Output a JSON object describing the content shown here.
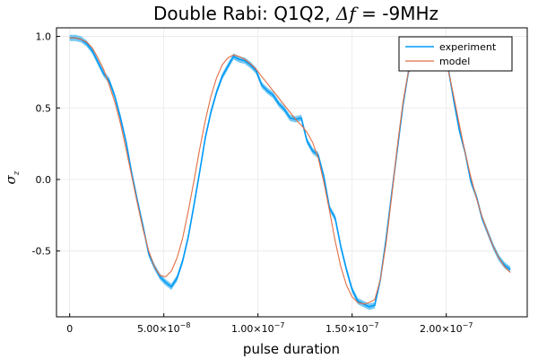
{
  "chart_data": {
    "type": "line",
    "title": "Double Rabi: Q1Q2, Δf = -9MHz",
    "title_parts": {
      "prefix": "Double Rabi: Q1Q2, ",
      "math": "Δf",
      "suffix": " = -9MHz"
    },
    "xlabel": "pulse duration",
    "ylabel": "σ",
    "ylabel_subscript": "z",
    "xlim": [
      -7e-09,
      2.43e-07
    ],
    "ylim": [
      -0.96,
      1.06
    ],
    "xticks": [
      {
        "value": 0,
        "mantissa": "0",
        "exponent": ""
      },
      {
        "value": 5e-08,
        "mantissa": "5.00×10",
        "exponent": "−8"
      },
      {
        "value": 1e-07,
        "mantissa": "1.00×10",
        "exponent": "−7"
      },
      {
        "value": 1.5e-07,
        "mantissa": "1.50×10",
        "exponent": "−7"
      },
      {
        "value": 2e-07,
        "mantissa": "2.00×10",
        "exponent": "−7"
      }
    ],
    "yticks": [
      {
        "value": 1.0,
        "label": "1.0"
      },
      {
        "value": 0.5,
        "label": "0.5"
      },
      {
        "value": 0.0,
        "label": "0.0"
      },
      {
        "value": -0.5,
        "label": "-0.5"
      }
    ],
    "grid": true,
    "legend_position": "top-right",
    "series": [
      {
        "name": "experiment",
        "color": "#009af9",
        "band_color": "#5ec0f0",
        "band_halfwidth": 0.022,
        "x": [
          0,
          3e-09,
          6e-09,
          9e-09,
          1.2e-08,
          1.5e-08,
          1.8e-08,
          2.1e-08,
          2.4e-08,
          2.7e-08,
          3e-08,
          3.3e-08,
          3.6e-08,
          3.9e-08,
          4.2e-08,
          4.5e-08,
          4.8e-08,
          5.1e-08,
          5.4e-08,
          5.7e-08,
          6e-08,
          6.3e-08,
          6.6e-08,
          6.9e-08,
          7.2e-08,
          7.5e-08,
          7.8e-08,
          8.1e-08,
          8.4e-08,
          8.7e-08,
          9e-08,
          9.3e-08,
          9.6e-08,
          9.9e-08,
          1.02e-07,
          1.05e-07,
          1.08e-07,
          1.11e-07,
          1.14e-07,
          1.17e-07,
          1.2e-07,
          1.23e-07,
          1.26e-07,
          1.29e-07,
          1.32e-07,
          1.35e-07,
          1.38e-07,
          1.41e-07,
          1.44e-07,
          1.47e-07,
          1.5e-07,
          1.53e-07,
          1.56e-07,
          1.59e-07,
          1.62e-07,
          1.65e-07,
          1.68e-07,
          1.71e-07,
          1.74e-07,
          1.77e-07,
          1.8e-07,
          1.83e-07,
          1.86e-07,
          1.89e-07,
          1.92e-07,
          1.95e-07,
          1.98e-07,
          2.01e-07,
          2.04e-07,
          2.07e-07,
          2.1e-07,
          2.13e-07,
          2.16e-07,
          2.19e-07,
          2.22e-07,
          2.25e-07,
          2.28e-07,
          2.31e-07,
          2.34e-07
        ],
        "y": [
          0.99,
          0.99,
          0.98,
          0.95,
          0.9,
          0.82,
          0.74,
          0.69,
          0.58,
          0.43,
          0.26,
          0.04,
          -0.15,
          -0.33,
          -0.52,
          -0.61,
          -0.68,
          -0.72,
          -0.75,
          -0.69,
          -0.57,
          -0.4,
          -0.18,
          0.05,
          0.29,
          0.47,
          0.61,
          0.72,
          0.79,
          0.86,
          0.84,
          0.83,
          0.8,
          0.76,
          0.66,
          0.62,
          0.59,
          0.53,
          0.49,
          0.43,
          0.42,
          0.43,
          0.27,
          0.2,
          0.17,
          0.02,
          -0.2,
          -0.27,
          -0.47,
          -0.63,
          -0.77,
          -0.85,
          -0.87,
          -0.89,
          -0.88,
          -0.7,
          -0.42,
          -0.1,
          0.21,
          0.52,
          0.76,
          0.83,
          0.83,
          0.81,
          0.8,
          0.78,
          0.82,
          0.78,
          0.55,
          0.34,
          0.19,
          -0.01,
          -0.12,
          -0.27,
          -0.37,
          -0.47,
          -0.55,
          -0.6,
          -0.63
        ]
      },
      {
        "name": "model",
        "color": "#e26f46",
        "x": [
          0,
          3e-09,
          6e-09,
          9e-09,
          1.2e-08,
          1.5e-08,
          1.8e-08,
          2.1e-08,
          2.4e-08,
          2.7e-08,
          3e-08,
          3.3e-08,
          3.6e-08,
          3.9e-08,
          4.2e-08,
          4.5e-08,
          4.8e-08,
          5.1e-08,
          5.4e-08,
          5.7e-08,
          6e-08,
          6.3e-08,
          6.6e-08,
          6.9e-08,
          7.2e-08,
          7.5e-08,
          7.8e-08,
          8.1e-08,
          8.4e-08,
          8.7e-08,
          9e-08,
          9.3e-08,
          9.6e-08,
          9.9e-08,
          1.02e-07,
          1.05e-07,
          1.08e-07,
          1.11e-07,
          1.14e-07,
          1.17e-07,
          1.2e-07,
          1.23e-07,
          1.26e-07,
          1.29e-07,
          1.32e-07,
          1.35e-07,
          1.38e-07,
          1.41e-07,
          1.44e-07,
          1.47e-07,
          1.5e-07,
          1.53e-07,
          1.56e-07,
          1.59e-07,
          1.62e-07,
          1.65e-07,
          1.68e-07,
          1.71e-07,
          1.74e-07,
          1.77e-07,
          1.8e-07,
          1.83e-07,
          1.86e-07,
          1.89e-07,
          1.92e-07,
          1.95e-07,
          1.98e-07,
          2.01e-07,
          2.04e-07,
          2.07e-07,
          2.1e-07,
          2.13e-07,
          2.16e-07,
          2.19e-07,
          2.22e-07,
          2.25e-07,
          2.28e-07,
          2.31e-07,
          2.34e-07
        ],
        "y": [
          0.99,
          0.99,
          0.98,
          0.96,
          0.92,
          0.85,
          0.77,
          0.66,
          0.54,
          0.39,
          0.21,
          0.02,
          -0.17,
          -0.35,
          -0.5,
          -0.61,
          -0.67,
          -0.68,
          -0.64,
          -0.55,
          -0.41,
          -0.22,
          -0.01,
          0.21,
          0.41,
          0.58,
          0.71,
          0.8,
          0.85,
          0.87,
          0.86,
          0.84,
          0.81,
          0.77,
          0.72,
          0.67,
          0.62,
          0.57,
          0.52,
          0.47,
          0.42,
          0.38,
          0.33,
          0.26,
          0.15,
          -0.02,
          -0.22,
          -0.43,
          -0.61,
          -0.74,
          -0.82,
          -0.86,
          -0.87,
          -0.86,
          -0.84,
          -0.7,
          -0.45,
          -0.12,
          0.23,
          0.54,
          0.76,
          0.87,
          0.9,
          0.89,
          0.87,
          0.86,
          0.85,
          0.77,
          0.58,
          0.38,
          0.19,
          0.02,
          -0.13,
          -0.26,
          -0.37,
          -0.47,
          -0.55,
          -0.61,
          -0.65
        ]
      }
    ]
  }
}
